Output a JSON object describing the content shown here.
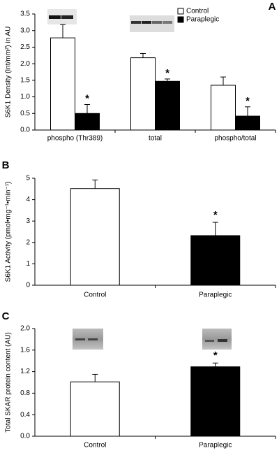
{
  "chart_data": [
    {
      "type": "bar",
      "panel_label": "A",
      "ylabel": "S6K1 Density (Int/mm²) in AU",
      "categories": [
        "phospho (Thr389)",
        "total",
        "phospho/total"
      ],
      "series": [
        {
          "name": "Control",
          "color": "#ffffff",
          "values": [
            2.78,
            2.18,
            1.35
          ],
          "errors": [
            0.4,
            0.13,
            0.25
          ]
        },
        {
          "name": "Paraplegic",
          "color": "#000000",
          "values": [
            0.5,
            1.47,
            0.42
          ],
          "errors": [
            0.27,
            0.07,
            0.28
          ],
          "annotations": [
            "*",
            "*",
            "*"
          ]
        }
      ],
      "ylim": [
        0,
        3.5
      ],
      "yticks": [
        {
          "value": 0,
          "label": "0.0"
        },
        0.5,
        {
          "value": 1,
          "label": "1.0"
        },
        1.5,
        {
          "value": 2,
          "label": "2.0"
        },
        2.5,
        {
          "value": 3,
          "label": "3.0"
        },
        3.5
      ],
      "legend": "upper right"
    },
    {
      "type": "bar",
      "panel_label": "B",
      "ylabel": "S6K1 Activity (pmol•mg⁻¹•min⁻¹)",
      "categories": [
        "Control",
        "Paraplegic"
      ],
      "values": [
        4.52,
        2.32
      ],
      "errors": [
        0.4,
        0.62
      ],
      "colors": [
        "#ffffff",
        "#000000"
      ],
      "annotations": [
        {
          "category": "Paraplegic",
          "text": "*"
        }
      ],
      "ylim": [
        0,
        5
      ],
      "yticks": [
        0,
        1,
        2,
        3,
        4,
        5
      ]
    },
    {
      "type": "bar",
      "panel_label": "C",
      "ylabel": "Total SKAR protein content (AU)",
      "categories": [
        "Control",
        "Paraplegic"
      ],
      "values": [
        1.01,
        1.29
      ],
      "errors": [
        0.14,
        0.07
      ],
      "colors": [
        "#ffffff",
        "#000000"
      ],
      "annotations": [
        {
          "category": "Paraplegic",
          "text": "*"
        }
      ],
      "ylim": [
        0,
        2
      ],
      "yticks": [
        {
          "value": 0,
          "label": "0.0"
        },
        0.4,
        0.8,
        1.2,
        1.6,
        {
          "value": 2,
          "label": "2.0"
        }
      ]
    }
  ]
}
